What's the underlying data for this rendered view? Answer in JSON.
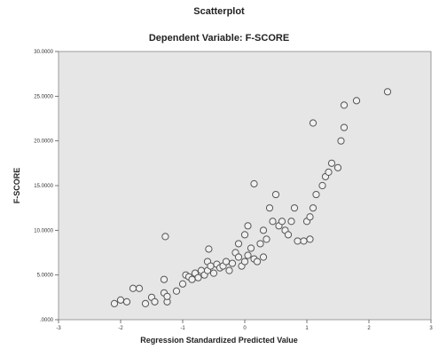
{
  "chart_data": {
    "type": "scatter",
    "title": "Scatterplot",
    "subtitle": "Dependent Variable: F-SCORE",
    "xlabel": "Regression Standardized Predicted Value",
    "ylabel": "F-SCORE",
    "xlim": [
      -3,
      3
    ],
    "ylim": [
      0,
      30
    ],
    "x_ticks": [
      -3,
      -2,
      -1,
      0,
      1,
      2,
      3
    ],
    "x_tick_labels": [
      "-3",
      "-2",
      "-1",
      "0",
      "1",
      "2",
      "3"
    ],
    "y_ticks": [
      0,
      5,
      10,
      15,
      20,
      25,
      30
    ],
    "y_tick_labels": [
      ".0000",
      "5.0000",
      "10.0000",
      "15.0000",
      "20.0000",
      "25.0000",
      "30.0000"
    ],
    "grid": false,
    "colors": {
      "plot_bg": "#e6e6e6",
      "marker_stroke": "#555555",
      "marker_fill": "#f0f0f0"
    },
    "points": [
      [
        -2.1,
        1.8
      ],
      [
        -2.0,
        2.2
      ],
      [
        -1.9,
        2.0
      ],
      [
        -1.8,
        3.5
      ],
      [
        -1.7,
        3.5
      ],
      [
        -1.6,
        1.8
      ],
      [
        -1.5,
        2.5
      ],
      [
        -1.45,
        2.0
      ],
      [
        -1.3,
        3.0
      ],
      [
        -1.3,
        4.5
      ],
      [
        -1.25,
        2.0
      ],
      [
        -1.25,
        2.6
      ],
      [
        -1.28,
        9.3
      ],
      [
        -1.1,
        3.2
      ],
      [
        -1.0,
        4.0
      ],
      [
        -0.95,
        5.0
      ],
      [
        -0.9,
        4.8
      ],
      [
        -0.85,
        4.5
      ],
      [
        -0.8,
        5.2
      ],
      [
        -0.75,
        4.7
      ],
      [
        -0.7,
        5.5
      ],
      [
        -0.65,
        5.0
      ],
      [
        -0.6,
        6.5
      ],
      [
        -0.6,
        5.5
      ],
      [
        -0.58,
        7.9
      ],
      [
        -0.55,
        6.0
      ],
      [
        -0.5,
        5.2
      ],
      [
        -0.45,
        6.2
      ],
      [
        -0.4,
        5.8
      ],
      [
        -0.35,
        6.0
      ],
      [
        -0.3,
        6.5
      ],
      [
        -0.25,
        5.5
      ],
      [
        -0.2,
        6.3
      ],
      [
        -0.15,
        7.5
      ],
      [
        -0.1,
        7.0
      ],
      [
        -0.1,
        8.5
      ],
      [
        -0.05,
        6.0
      ],
      [
        0.0,
        9.5
      ],
      [
        0.0,
        6.5
      ],
      [
        0.05,
        10.5
      ],
      [
        0.05,
        7.2
      ],
      [
        0.1,
        8.0
      ],
      [
        0.15,
        6.8
      ],
      [
        0.2,
        6.5
      ],
      [
        0.15,
        15.2
      ],
      [
        0.25,
        8.5
      ],
      [
        0.3,
        7.0
      ],
      [
        0.3,
        10.0
      ],
      [
        0.35,
        9.0
      ],
      [
        0.4,
        12.5
      ],
      [
        0.45,
        11.0
      ],
      [
        0.5,
        14.0
      ],
      [
        0.55,
        10.5
      ],
      [
        0.6,
        11.0
      ],
      [
        0.65,
        10.0
      ],
      [
        0.7,
        9.5
      ],
      [
        0.75,
        11.0
      ],
      [
        0.8,
        12.5
      ],
      [
        0.85,
        8.8
      ],
      [
        0.95,
        8.8
      ],
      [
        1.0,
        11.0
      ],
      [
        1.05,
        9.0
      ],
      [
        1.05,
        11.5
      ],
      [
        1.1,
        12.5
      ],
      [
        1.1,
        22.0
      ],
      [
        1.15,
        14.0
      ],
      [
        1.25,
        15.0
      ],
      [
        1.3,
        16.0
      ],
      [
        1.35,
        16.5
      ],
      [
        1.4,
        17.5
      ],
      [
        1.5,
        17.0
      ],
      [
        1.55,
        20.0
      ],
      [
        1.6,
        21.5
      ],
      [
        1.6,
        24.0
      ],
      [
        1.8,
        24.5
      ],
      [
        2.3,
        25.5
      ]
    ]
  }
}
